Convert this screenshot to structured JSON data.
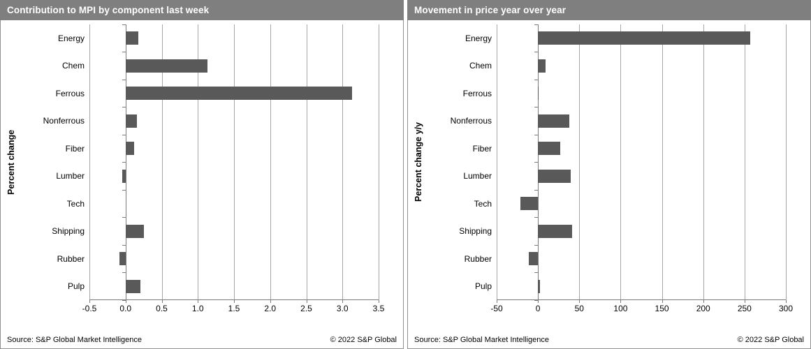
{
  "footer": {
    "source": "Source: S&P Global Market Intelligence",
    "copyright": "© 2022 S&P Global"
  },
  "colors": {
    "titlebar_background": "#7f7f7f",
    "titlebar_text": "#ffffff",
    "bar_fill": "#595959",
    "gridline": "#a6a6a6",
    "axis_line": "#7a7a7a",
    "panel_border": "#8f8f8f",
    "background": "#ffffff"
  },
  "chart_data": [
    {
      "type": "bar",
      "orientation": "horizontal",
      "title": "Contribution to MPI by component last week",
      "ylabel": "Percent change",
      "xlabel": "",
      "categories": [
        "Energy",
        "Chem",
        "Ferrous",
        "Nonferrous",
        "Fiber",
        "Lumber",
        "Tech",
        "Shipping",
        "Rubber",
        "Pulp"
      ],
      "values": [
        0.18,
        1.13,
        3.13,
        0.16,
        0.12,
        -0.05,
        0.0,
        0.25,
        -0.08,
        0.21
      ],
      "xlim": [
        -0.5,
        3.5
      ],
      "xticks": [
        -0.5,
        0.0,
        0.5,
        1.0,
        1.5,
        2.0,
        2.5,
        3.0,
        3.5
      ],
      "xtick_labels": [
        "-0.5",
        "0.0",
        "0.5",
        "1.0",
        "1.5",
        "2.0",
        "2.5",
        "3.0",
        "3.5"
      ],
      "grid": "vertical-on",
      "legend": "none"
    },
    {
      "type": "bar",
      "orientation": "horizontal",
      "title": "Movement in price year over year",
      "ylabel": "Percent change y/y",
      "xlabel": "",
      "categories": [
        "Energy",
        "Chem",
        "Ferrous",
        "Nonferrous",
        "Fiber",
        "Lumber",
        "Tech",
        "Shipping",
        "Rubber",
        "Pulp"
      ],
      "values": [
        257,
        9,
        1,
        38,
        27,
        40,
        -21,
        41,
        -11,
        2
      ],
      "xlim": [
        -50,
        300
      ],
      "xticks": [
        -50,
        0,
        50,
        100,
        150,
        200,
        250,
        300
      ],
      "xtick_labels": [
        "-50",
        "0",
        "50",
        "100",
        "150",
        "200",
        "250",
        "300"
      ],
      "grid": "vertical-on",
      "legend": "none"
    }
  ]
}
